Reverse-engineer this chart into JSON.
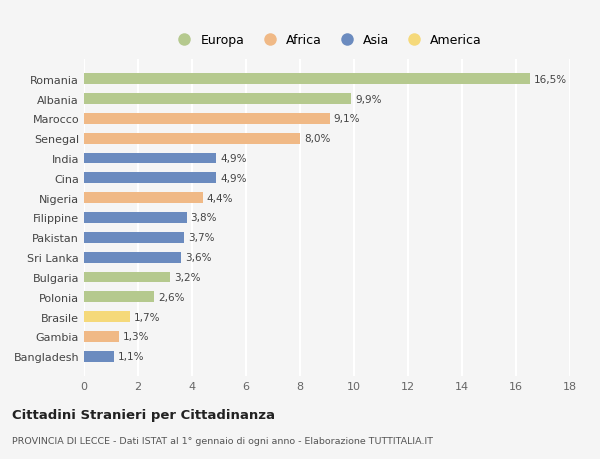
{
  "countries": [
    "Romania",
    "Albania",
    "Marocco",
    "Senegal",
    "India",
    "Cina",
    "Nigeria",
    "Filippine",
    "Pakistan",
    "Sri Lanka",
    "Bulgaria",
    "Polonia",
    "Brasile",
    "Gambia",
    "Bangladesh"
  ],
  "values": [
    16.5,
    9.9,
    9.1,
    8.0,
    4.9,
    4.9,
    4.4,
    3.8,
    3.7,
    3.6,
    3.2,
    2.6,
    1.7,
    1.3,
    1.1
  ],
  "labels": [
    "16,5%",
    "9,9%",
    "9,1%",
    "8,0%",
    "4,9%",
    "4,9%",
    "4,4%",
    "3,8%",
    "3,7%",
    "3,6%",
    "3,2%",
    "2,6%",
    "1,7%",
    "1,3%",
    "1,1%"
  ],
  "regions": [
    "Europa",
    "Europa",
    "Africa",
    "Africa",
    "Asia",
    "Asia",
    "Africa",
    "Asia",
    "Asia",
    "Asia",
    "Europa",
    "Europa",
    "America",
    "Africa",
    "Asia"
  ],
  "colors": {
    "Europa": "#b5c98e",
    "Africa": "#f0b986",
    "Asia": "#6b8bbf",
    "America": "#f5d97a"
  },
  "legend_order": [
    "Europa",
    "Africa",
    "Asia",
    "America"
  ],
  "xlim": [
    0,
    18
  ],
  "xticks": [
    0,
    2,
    4,
    6,
    8,
    10,
    12,
    14,
    16,
    18
  ],
  "title": "Cittadini Stranieri per Cittadinanza",
  "subtitle": "PROVINCIA DI LECCE - Dati ISTAT al 1° gennaio di ogni anno - Elaborazione TUTTITALIA.IT",
  "bg_color": "#f5f5f5",
  "grid_color": "#ffffff",
  "bar_height": 0.55
}
